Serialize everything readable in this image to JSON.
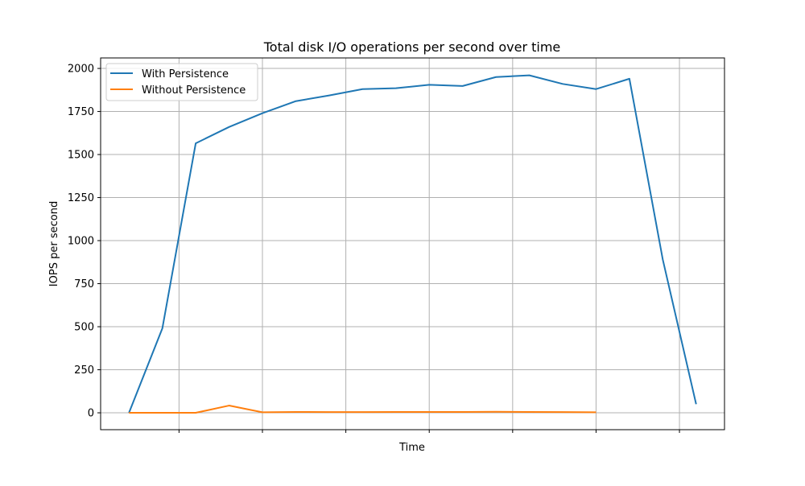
{
  "chart_data": {
    "type": "line",
    "title": "Total disk I/O operations per second over time",
    "xlabel": "Time",
    "ylabel": "IOPS per second",
    "xlim": [
      -0.85,
      17.85
    ],
    "ylim": [
      -98,
      2061
    ],
    "x_ticks": [
      1.5,
      4,
      6.5,
      9,
      11.5,
      14,
      16.5
    ],
    "x_tick_labels": [
      "",
      "",
      "",
      "",
      "",
      "",
      ""
    ],
    "y_ticks": [
      0,
      250,
      500,
      750,
      1000,
      1250,
      1500,
      1750,
      2000
    ],
    "y_tick_labels": [
      "0",
      "250",
      "500",
      "750",
      "1000",
      "1250",
      "1500",
      "1750",
      "2000"
    ],
    "grid": true,
    "legend_position": "upper-left",
    "series": [
      {
        "name": "With Persistence",
        "color": "#1f77b4",
        "x": [
          0,
          1,
          2,
          3,
          4,
          5,
          6,
          7,
          8,
          9,
          10,
          11,
          12,
          13,
          14,
          15,
          16,
          17
        ],
        "values": [
          0,
          490,
          1565,
          1660,
          1740,
          1810,
          1843,
          1880,
          1885,
          1905,
          1898,
          1950,
          1960,
          1910,
          1880,
          1940,
          890,
          50
        ]
      },
      {
        "name": "Without Persistence",
        "color": "#ff7f0e",
        "x": [
          0,
          1,
          2,
          3,
          4,
          5,
          6,
          7,
          8,
          9,
          10,
          11,
          12,
          13,
          14
        ],
        "values": [
          0,
          0,
          0,
          42,
          3,
          5,
          4,
          4,
          5,
          5,
          5,
          6,
          5,
          4,
          3
        ]
      }
    ]
  }
}
